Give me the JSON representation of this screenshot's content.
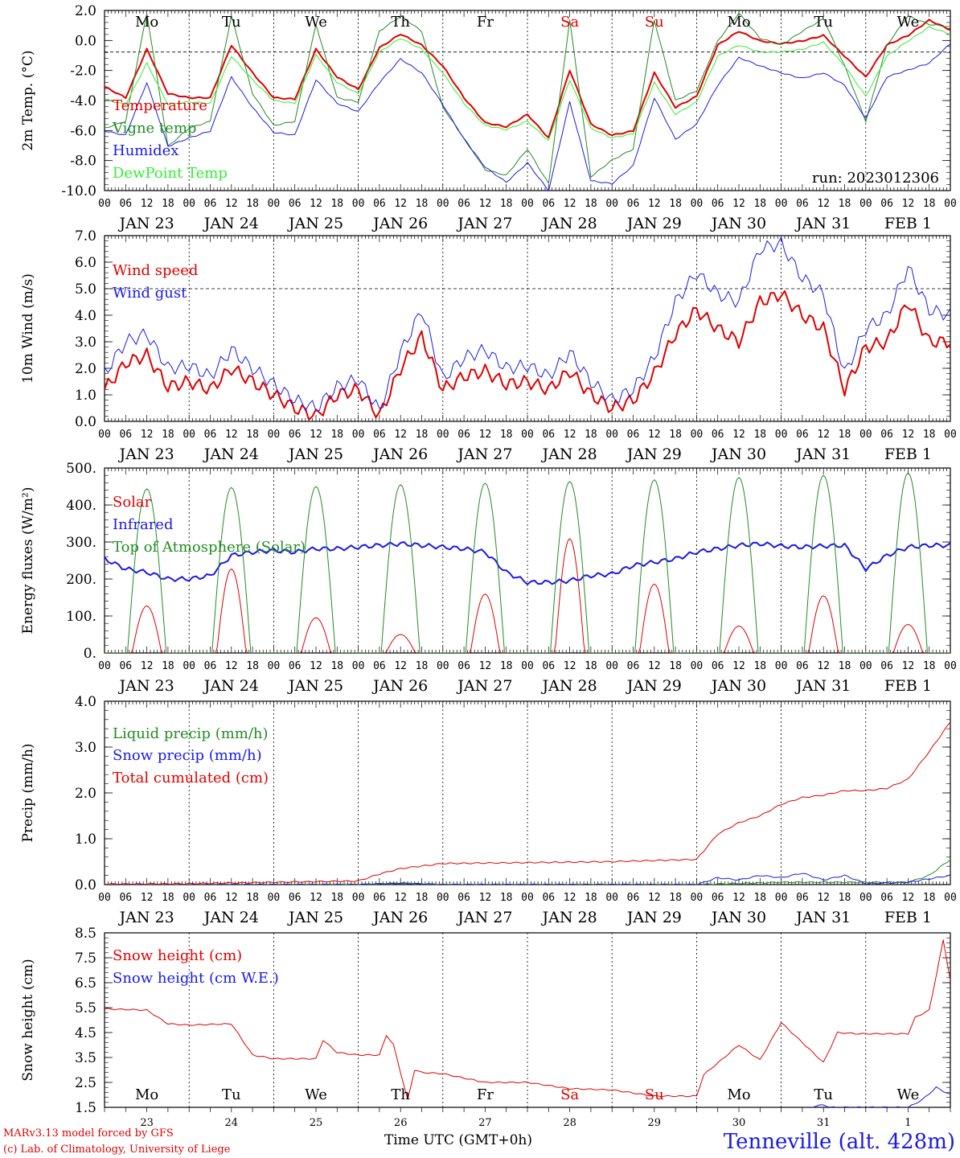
{
  "run_label": "run: 2023012306",
  "station": "Tenneville (alt. 428m)",
  "credits": [
    "MARv3.13 model forced by GFS",
    "(c) Lab. of Climatology, University of Liege"
  ],
  "time_axis_label": "Time UTC (GMT+0h)",
  "day_names": [
    "Mo",
    "Tu",
    "We",
    "Th",
    "Fr",
    "Sa",
    "Su",
    "Mo",
    "Tu",
    "We"
  ],
  "day_name_colors": [
    "#000000",
    "#000000",
    "#000000",
    "#000000",
    "#000000",
    "#e00000",
    "#e00000",
    "#000000",
    "#000000",
    "#000000"
  ],
  "date_labels": [
    "JAN 23",
    "JAN 24",
    "JAN 25",
    "JAN 26",
    "JAN 27",
    "JAN 28",
    "JAN 29",
    "JAN 30",
    "JAN 31",
    "FEB  1"
  ],
  "hour_ticks": [
    "00",
    "06",
    "12",
    "18"
  ],
  "bottom_day_numbers": [
    "23",
    "24",
    "25",
    "26",
    "27",
    "28",
    "29",
    "30",
    "31",
    "1"
  ],
  "colors": {
    "red": "#e00000",
    "green": "#238b23",
    "blue": "#1a1ae6",
    "lime": "#33ee33"
  },
  "chart_data": [
    {
      "type": "line",
      "ylabel": "2m Temp. (°C)",
      "ylim": [
        -10,
        3
      ],
      "yticks": [
        "-10.0",
        "-8.0",
        "-6.0",
        "-4.0",
        "-2.0",
        "0.0",
        "2.0"
      ],
      "x_unit": "hours since JAN 23 00 UTC",
      "series": [
        {
          "name": "Temperature",
          "color": "#e00000",
          "width": 2,
          "x": [
            0,
            6,
            12,
            18,
            24,
            30,
            36,
            42,
            48,
            54,
            60,
            66,
            72,
            78,
            84,
            90,
            96,
            102,
            108,
            114,
            120,
            126,
            132,
            138,
            144,
            150,
            156,
            162,
            168,
            174,
            180,
            186,
            192,
            198,
            204,
            210,
            216,
            222,
            228,
            234,
            240
          ],
          "y": [
            -2.5,
            -3.3,
            0.2,
            -3.0,
            -3.3,
            -3.3,
            0.5,
            -1.5,
            -3.3,
            -3.4,
            0.2,
            -1.8,
            -2.7,
            0.3,
            1.3,
            0.5,
            -1.0,
            -3.3,
            -5.1,
            -5.4,
            -4.5,
            -6.2,
            -1.3,
            -5.2,
            -6.0,
            -5.7,
            -1.5,
            -4.0,
            -3.2,
            0.5,
            1.5,
            0.8,
            0.6,
            0.8,
            1.2,
            -0.3,
            -1.8,
            0.5,
            1.2,
            2.3,
            1.6
          ]
        },
        {
          "name": "Vigne temp",
          "color": "#238b23",
          "width": 1,
          "x": [
            0,
            6,
            12,
            18,
            24,
            30,
            36,
            42,
            48,
            54,
            60,
            66,
            72,
            78,
            84,
            90,
            96,
            102,
            108,
            114,
            120,
            126,
            132,
            138,
            144,
            150,
            156,
            162,
            168,
            174,
            180,
            186,
            192,
            198,
            204,
            210,
            216,
            222,
            228,
            234,
            240
          ],
          "y": [
            -5.5,
            -5.0,
            2.8,
            -6.8,
            -5.5,
            -5.0,
            2.6,
            -3.0,
            -5.3,
            -5.0,
            2.0,
            -3.3,
            -3.6,
            1.5,
            2.6,
            1.5,
            -4.0,
            -6.2,
            -8.5,
            -8.9,
            -7.0,
            -9.5,
            2.3,
            -9.0,
            -7.8,
            -7.0,
            2.3,
            -3.5,
            -2.8,
            0.8,
            2.8,
            1.0,
            0.5,
            1.5,
            2.4,
            -1.0,
            -5.0,
            0.5,
            2.6,
            2.0,
            1.8
          ]
        },
        {
          "name": "Humidex",
          "color": "#1a1ae6",
          "width": 1,
          "x": [
            0,
            6,
            12,
            18,
            24,
            30,
            36,
            42,
            48,
            54,
            60,
            66,
            72,
            78,
            84,
            90,
            96,
            102,
            108,
            114,
            120,
            126,
            132,
            138,
            144,
            150,
            156,
            162,
            168,
            174,
            180,
            186,
            192,
            198,
            204,
            210,
            216,
            222,
            228,
            234,
            240
          ],
          "y": [
            -5.7,
            -6.0,
            -2.2,
            -6.8,
            -6.2,
            -5.7,
            -1.8,
            -4.0,
            -5.8,
            -6.0,
            -2.0,
            -3.7,
            -4.3,
            -2.2,
            -0.5,
            -1.5,
            -3.8,
            -6.3,
            -8.3,
            -9.4,
            -8.0,
            -10.0,
            -3.6,
            -9.3,
            -9.5,
            -8.2,
            -3.3,
            -6.3,
            -5.2,
            -2.4,
            -0.4,
            -1.0,
            -1.5,
            -1.9,
            -1.5,
            -2.4,
            -4.8,
            -1.8,
            -1.3,
            -0.8,
            0.6
          ]
        },
        {
          "name": "DewPoint Temp",
          "color": "#33ee33",
          "width": 1,
          "x": [
            0,
            6,
            12,
            18,
            24,
            30,
            36,
            42,
            48,
            54,
            60,
            66,
            72,
            78,
            84,
            90,
            96,
            102,
            108,
            114,
            120,
            126,
            132,
            138,
            144,
            150,
            156,
            162,
            168,
            174,
            180,
            186,
            192,
            198,
            204,
            210,
            216,
            222,
            228,
            234,
            240
          ],
          "y": [
            -3.4,
            -3.8,
            -0.8,
            -3.8,
            -3.6,
            -3.7,
            -0.3,
            -2.0,
            -3.5,
            -3.7,
            -0.2,
            -2.2,
            -3.0,
            0.0,
            1.0,
            0.2,
            -1.5,
            -3.7,
            -5.3,
            -5.6,
            -5.0,
            -6.4,
            -2.0,
            -5.5,
            -6.2,
            -5.9,
            -2.2,
            -4.5,
            -3.6,
            -0.3,
            0.5,
            0.0,
            0.0,
            0.2,
            0.7,
            -1.0,
            -3.2,
            -0.3,
            0.8,
            1.8,
            1.3
          ]
        }
      ],
      "dashed_reference": 0.0
    },
    {
      "type": "line",
      "ylabel": "10m Wind (m/s)",
      "ylim": [
        0,
        7
      ],
      "yticks": [
        "0.0",
        "1.0",
        "2.0",
        "3.0",
        "4.0",
        "5.0",
        "6.0",
        "7.0"
      ],
      "series": [
        {
          "name": "Wind speed",
          "color": "#e00000",
          "width": 2,
          "x": [
            0,
            6,
            12,
            18,
            24,
            30,
            36,
            42,
            48,
            54,
            60,
            66,
            72,
            78,
            84,
            90,
            96,
            102,
            108,
            114,
            120,
            126,
            132,
            138,
            144,
            150,
            156,
            162,
            168,
            174,
            180,
            186,
            192,
            198,
            204,
            210,
            216,
            222,
            228,
            234,
            240
          ],
          "y": [
            1.2,
            2.2,
            2.5,
            1.3,
            1.5,
            1.2,
            2.0,
            1.5,
            1.0,
            0.5,
            0.2,
            1.0,
            1.2,
            0.2,
            2.0,
            3.2,
            1.2,
            1.7,
            1.9,
            1.4,
            1.5,
            1.2,
            1.9,
            1.0,
            0.5,
            0.8,
            1.8,
            3.3,
            4.2,
            3.5,
            3.0,
            4.5,
            4.8,
            4.0,
            3.5,
            1.2,
            2.8,
            3.0,
            4.5,
            3.0,
            3.0
          ]
        },
        {
          "name": "Wind gust",
          "color": "#1a1ae6",
          "width": 1,
          "x": [
            0,
            6,
            12,
            18,
            24,
            30,
            36,
            42,
            48,
            54,
            60,
            66,
            72,
            78,
            84,
            90,
            96,
            102,
            108,
            114,
            120,
            126,
            132,
            138,
            144,
            150,
            156,
            162,
            168,
            174,
            180,
            186,
            192,
            198,
            204,
            210,
            216,
            222,
            228,
            234,
            240
          ],
          "y": [
            1.8,
            3.0,
            3.3,
            2.0,
            2.1,
            1.7,
            2.7,
            2.0,
            1.4,
            0.8,
            0.5,
            1.3,
            1.6,
            0.4,
            2.6,
            4.2,
            1.6,
            2.4,
            2.7,
            2.0,
            2.1,
            1.7,
            2.6,
            1.5,
            0.8,
            1.2,
            2.4,
            4.5,
            5.6,
            4.8,
            4.5,
            6.5,
            6.7,
            5.4,
            4.8,
            1.8,
            3.5,
            4.0,
            5.8,
            4.2,
            4.0
          ]
        }
      ],
      "dashed_reference": 5.0
    },
    {
      "type": "line",
      "ylabel": "Energy fluxes (W/m²)",
      "ylim": [
        0,
        550
      ],
      "yticks": [
        "0.",
        "100.",
        "200.",
        "300.",
        "400.",
        "500."
      ],
      "series": [
        {
          "name": "Solar",
          "color": "#e00000",
          "width": 1,
          "daily_peak": [
            140,
            250,
            105,
            55,
            175,
            340,
            205,
            80,
            170,
            85
          ]
        },
        {
          "name": "Infrared",
          "color": "#1a1ae6",
          "width": 2,
          "x": [
            0,
            6,
            12,
            18,
            24,
            30,
            36,
            42,
            48,
            54,
            60,
            66,
            72,
            78,
            84,
            90,
            96,
            102,
            108,
            114,
            120,
            126,
            132,
            138,
            144,
            150,
            156,
            162,
            168,
            174,
            180,
            186,
            192,
            198,
            204,
            210,
            216,
            222,
            228,
            234,
            240
          ],
          "y": [
            280,
            250,
            240,
            220,
            220,
            230,
            290,
            300,
            305,
            300,
            310,
            310,
            315,
            320,
            325,
            320,
            315,
            310,
            300,
            240,
            210,
            210,
            215,
            230,
            235,
            260,
            270,
            280,
            300,
            310,
            320,
            325,
            318,
            315,
            318,
            320,
            250,
            290,
            315,
            320,
            320
          ]
        },
        {
          "name": "Top of Atmosphere (Solar)",
          "color": "#238b23",
          "width": 1,
          "daily_peak": [
            488,
            492,
            495,
            500,
            505,
            510,
            515,
            522,
            528,
            535
          ]
        }
      ]
    },
    {
      "type": "line",
      "ylabel": "Precip (mm/h)",
      "ylim": [
        0,
        4
      ],
      "yticks": [
        "0.0",
        "1.0",
        "2.0",
        "3.0",
        "4.0"
      ],
      "series": [
        {
          "name": "Liquid precip (mm/h)",
          "color": "#238b23",
          "width": 1,
          "x": [
            0,
            48,
            72,
            84,
            96,
            168,
            192,
            216,
            228,
            234,
            240
          ],
          "y": [
            0,
            0,
            0,
            0.03,
            0,
            0,
            0.05,
            0.05,
            0.05,
            0.2,
            0.55
          ]
        },
        {
          "name": "Snow precip (mm/h)",
          "color": "#1a1ae6",
          "width": 1,
          "x": [
            0,
            72,
            84,
            96,
            168,
            174,
            180,
            186,
            192,
            198,
            204,
            210,
            216,
            228,
            240
          ],
          "y": [
            0,
            0,
            0.03,
            0,
            0,
            0.15,
            0.1,
            0.2,
            0.15,
            0.25,
            0.1,
            0.2,
            0.02,
            0.05,
            0.2
          ]
        },
        {
          "name": "Total cumulated (cm)",
          "color": "#e00000",
          "width": 1,
          "x": [
            0,
            24,
            48,
            72,
            78,
            84,
            96,
            120,
            144,
            168,
            174,
            180,
            186,
            192,
            198,
            204,
            210,
            216,
            222,
            228,
            234,
            240
          ],
          "y": [
            0.01,
            0.02,
            0.05,
            0.08,
            0.23,
            0.35,
            0.46,
            0.48,
            0.5,
            0.55,
            1.1,
            1.35,
            1.5,
            1.75,
            1.9,
            1.95,
            2.05,
            2.05,
            2.1,
            2.3,
            2.9,
            3.55
          ]
        }
      ]
    },
    {
      "type": "line",
      "ylabel": "Snow height (cm)",
      "ylim": [
        1.5,
        8.5
      ],
      "yticks": [
        "1.5",
        "2.5",
        "3.5",
        "4.5",
        "5.5",
        "6.5",
        "7.5",
        "8.5"
      ],
      "series": [
        {
          "name": "Snow height (cm)",
          "color": "#e00000",
          "width": 1,
          "x": [
            0,
            12,
            18,
            24,
            36,
            42,
            48,
            60,
            62,
            66,
            72,
            78,
            80,
            82,
            86,
            88,
            90,
            96,
            108,
            120,
            132,
            144,
            156,
            168,
            170,
            180,
            186,
            192,
            204,
            208,
            214,
            216,
            228,
            230,
            234,
            238,
            240
          ],
          "y": [
            5.45,
            5.4,
            4.85,
            4.8,
            4.85,
            3.6,
            3.45,
            3.45,
            4.2,
            3.7,
            3.6,
            3.6,
            4.4,
            4.0,
            1.8,
            3.0,
            2.9,
            2.85,
            2.5,
            2.5,
            2.25,
            2.2,
            1.95,
            1.95,
            2.8,
            4.0,
            3.4,
            4.9,
            3.3,
            4.5,
            4.45,
            4.45,
            4.45,
            5.1,
            5.4,
            8.2,
            6.6
          ]
        },
        {
          "name": "Snow height (cm W.E.)",
          "color": "#1a1ae6",
          "width": 1,
          "x": [
            200,
            204,
            206,
            228,
            232,
            236,
            240
          ],
          "y": [
            1.5,
            1.6,
            1.5,
            1.5,
            1.8,
            2.3,
            2.0
          ]
        }
      ]
    }
  ]
}
